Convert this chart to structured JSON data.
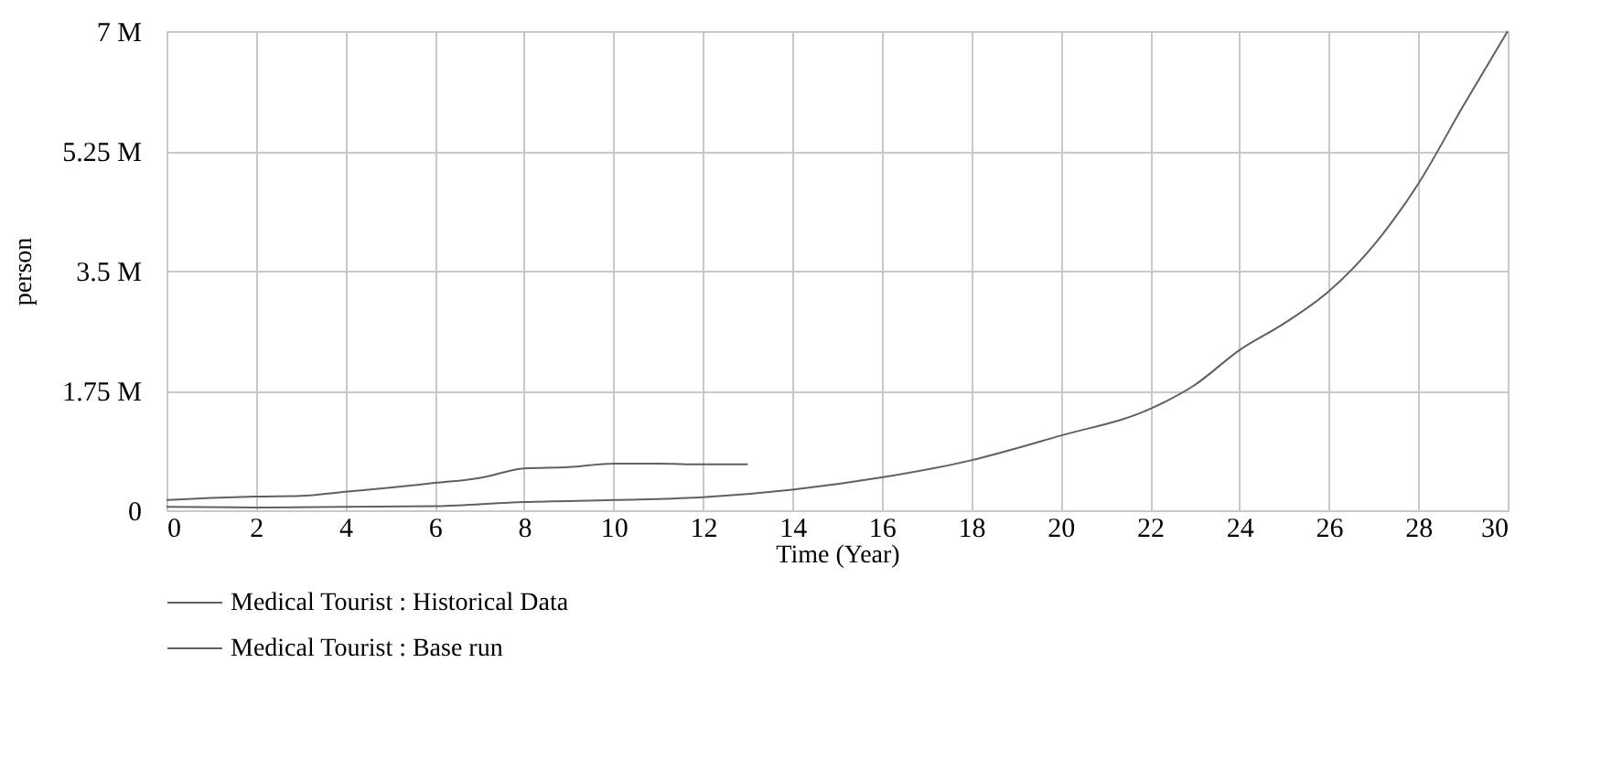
{
  "chart_data": {
    "type": "line",
    "xlabel": "Time (Year)",
    "ylabel": "person",
    "xlim": [
      0,
      30
    ],
    "xticks": [
      0,
      2,
      4,
      6,
      8,
      10,
      12,
      14,
      16,
      18,
      20,
      22,
      24,
      26,
      28,
      30
    ],
    "ylim": [
      0,
      7000000
    ],
    "yticks": [
      {
        "value": 0,
        "label": "0"
      },
      {
        "value": 1750000,
        "label": "1.75 M"
      },
      {
        "value": 3500000,
        "label": "3.5 M"
      },
      {
        "value": 5250000,
        "label": "5.25 M"
      },
      {
        "value": 7000000,
        "label": "7 M"
      }
    ],
    "grid": true,
    "legend": "bottom left",
    "series": [
      {
        "name": "Medical Tourist   : Historical Data",
        "color": "#606060",
        "x": [
          0,
          1,
          2,
          3,
          4,
          5,
          6,
          7,
          8,
          9,
          10,
          11,
          12,
          13
        ],
        "values": [
          150000,
          180000,
          200000,
          210000,
          270000,
          330000,
          400000,
          470000,
          610000,
          630000,
          680000,
          680000,
          670000,
          670000
        ]
      },
      {
        "name": "Medical Tourist   : Base run",
        "color": "#606060",
        "x": [
          0,
          2,
          4,
          6,
          8,
          10,
          12,
          14,
          16,
          18,
          20,
          22,
          23,
          24,
          25,
          26,
          27,
          28,
          29,
          30
        ],
        "values": [
          50000,
          40000,
          50000,
          60000,
          120000,
          150000,
          190000,
          300000,
          480000,
          730000,
          1090000,
          1480000,
          1830000,
          2340000,
          2730000,
          3200000,
          3870000,
          4770000,
          5900000,
          7000000
        ]
      }
    ]
  }
}
